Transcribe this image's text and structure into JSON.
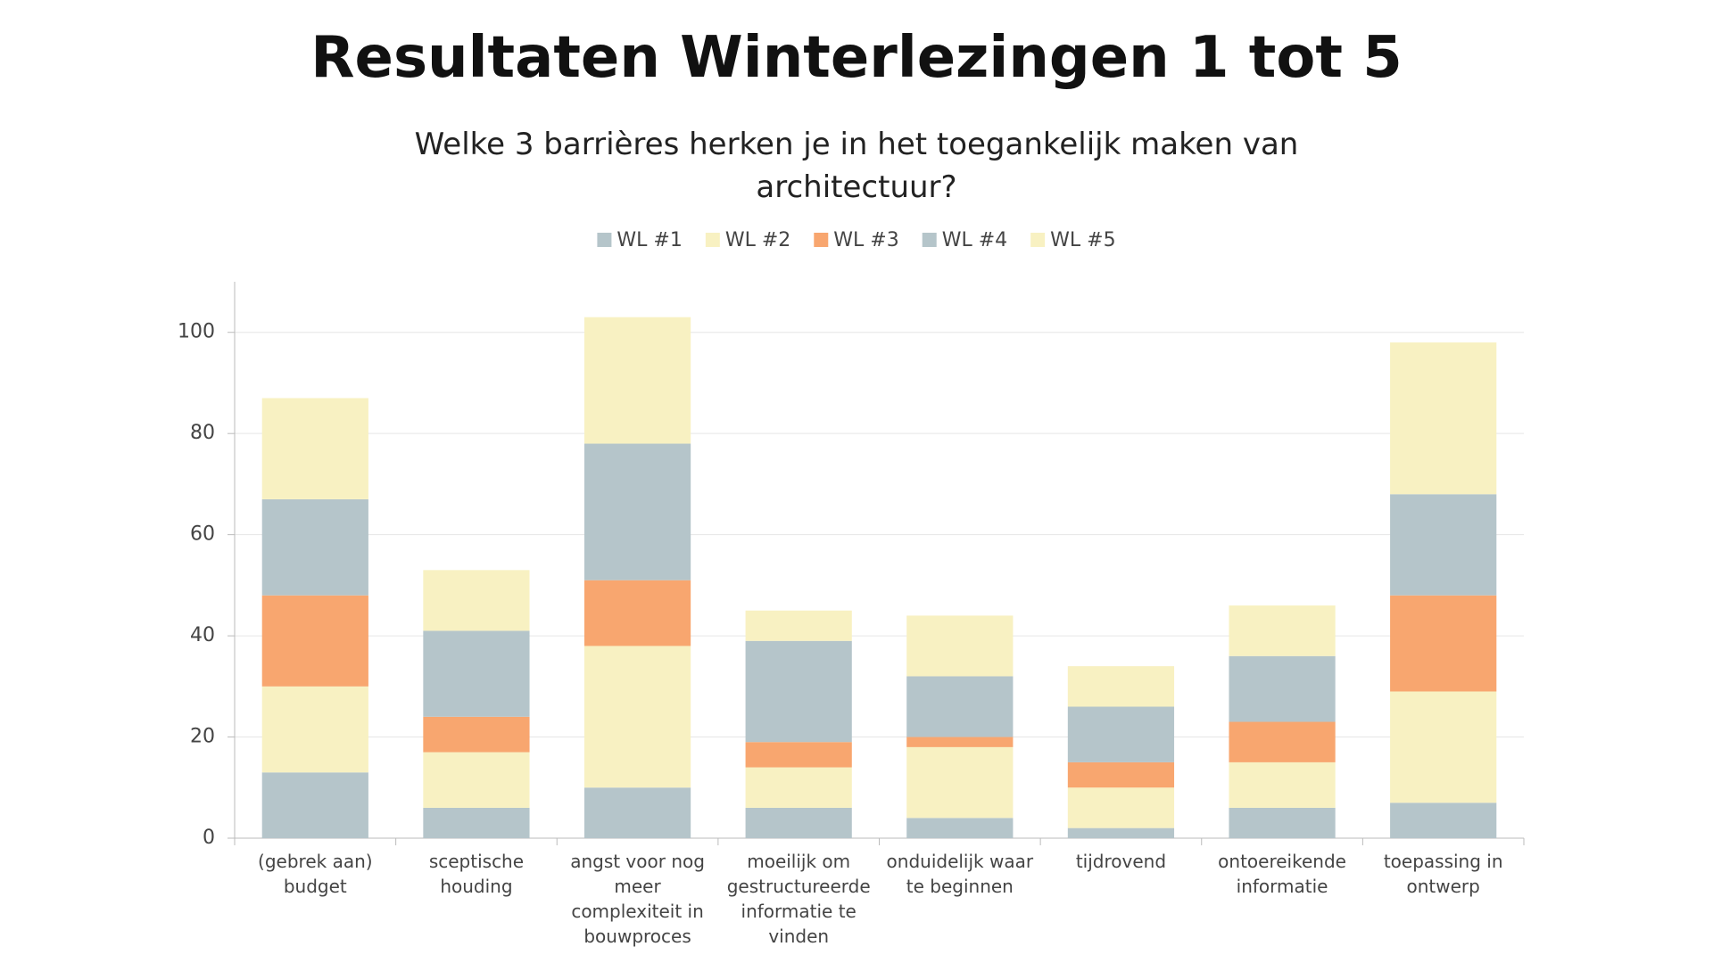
{
  "chart_data": {
    "type": "stacked_bar",
    "title": "Resultaten Winterlezingen 1 tot 5",
    "subtitle": "Welke 3 barrières herken je in het toegankelijk maken van architectuur?",
    "categories": [
      "(gebrek aan) budget",
      "sceptische houding",
      "angst voor nog meer complexiteit in bouwproces",
      "moeilijk om gestructureerde informatie te vinden",
      "onduidelijk waar te beginnen",
      "tijdrovend",
      "ontoereikende informatie",
      "toepassing in ontwerp"
    ],
    "series": [
      {
        "name": "WL #1",
        "color": "#b5c5ca",
        "values": [
          13,
          6,
          10,
          6,
          4,
          2,
          6,
          7
        ]
      },
      {
        "name": "WL #2",
        "color": "#f8f1c2",
        "values": [
          17,
          11,
          28,
          8,
          14,
          8,
          9,
          22
        ]
      },
      {
        "name": "WL #3",
        "color": "#f8a66f",
        "values": [
          18,
          7,
          13,
          5,
          2,
          5,
          8,
          19
        ]
      },
      {
        "name": "WL #4",
        "color": "#b5c5ca",
        "values": [
          19,
          17,
          27,
          20,
          12,
          11,
          13,
          20
        ]
      },
      {
        "name": "WL #5",
        "color": "#f8f1c2",
        "values": [
          20,
          12,
          25,
          6,
          12,
          8,
          10,
          30
        ]
      }
    ],
    "ylim": [
      0,
      110
    ],
    "yticks": [
      0,
      20,
      40,
      60,
      80,
      100
    ],
    "grid": true,
    "legend": "top"
  }
}
